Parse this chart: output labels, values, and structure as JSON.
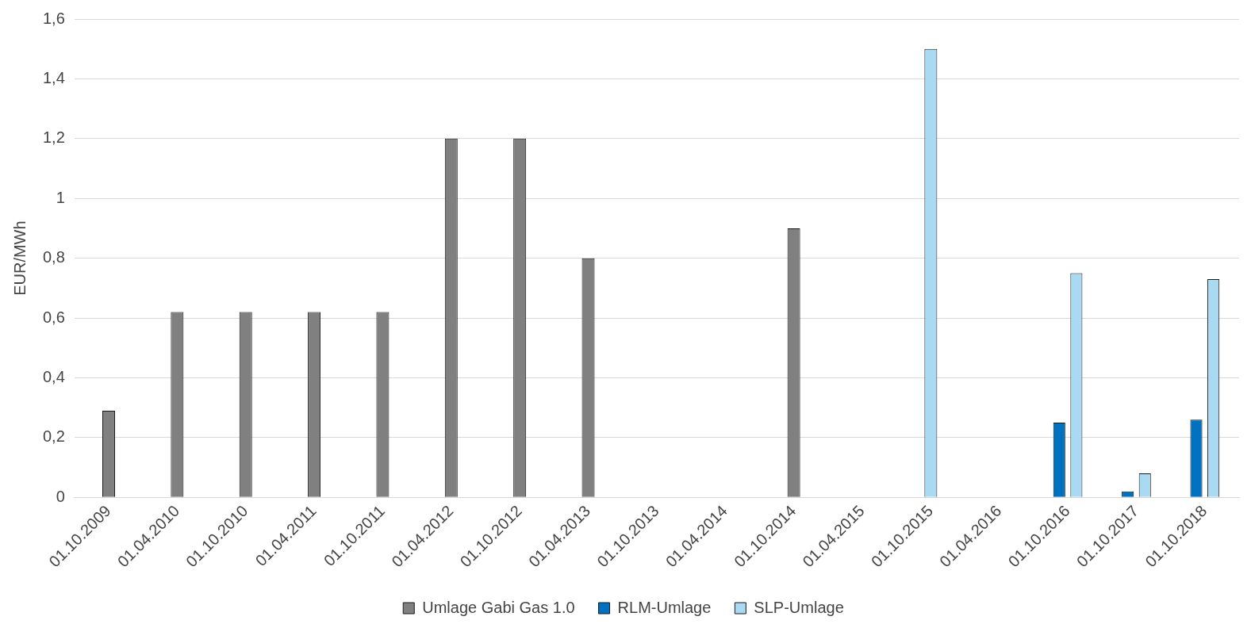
{
  "chart_data": {
    "type": "bar",
    "ylabel": "EUR/MWh",
    "categories": [
      "01.10.2009",
      "01.04.2010",
      "01.10.2010",
      "01.04.2011",
      "01.10.2011",
      "01.04.2012",
      "01.10.2012",
      "01.04.2013",
      "01.10.2013",
      "01.04.2014",
      "01.10.2014",
      "01.04.2015",
      "01.10.2015",
      "01.04.2016",
      "01.10.2016",
      "01.10.2017",
      "01.10.2018"
    ],
    "series": [
      {
        "name": "Umlage Gabi Gas 1.0",
        "color": "#808080",
        "values": [
          0.29,
          0.62,
          0.62,
          0.62,
          0.62,
          1.2,
          1.2,
          0.8,
          null,
          null,
          0.9,
          null,
          null,
          null,
          null,
          null,
          null
        ]
      },
      {
        "name": "RLM-Umlage",
        "color": "#0070c0",
        "values": [
          null,
          null,
          null,
          null,
          null,
          null,
          null,
          null,
          null,
          null,
          null,
          null,
          null,
          null,
          0.25,
          0.02,
          0.26
        ]
      },
      {
        "name": "SLP-Umlage",
        "color": "#a9daf2",
        "values": [
          null,
          null,
          null,
          null,
          null,
          null,
          null,
          null,
          null,
          null,
          null,
          null,
          1.5,
          null,
          0.75,
          0.08,
          0.73
        ]
      }
    ],
    "ylim": [
      0,
      1.6
    ],
    "yticks": [
      0,
      {
        "value": 0.2,
        "label": "0,2"
      },
      {
        "value": 0.4,
        "label": "0,4"
      },
      {
        "value": 0.6,
        "label": "0,6"
      },
      {
        "value": 0.8,
        "label": "0,8"
      },
      1,
      {
        "value": 1.2,
        "label": "1,2"
      },
      {
        "value": 1.4,
        "label": "1,4"
      },
      {
        "value": 1.6,
        "label": "1,6"
      }
    ],
    "grid": "y",
    "legend": "bottom"
  }
}
